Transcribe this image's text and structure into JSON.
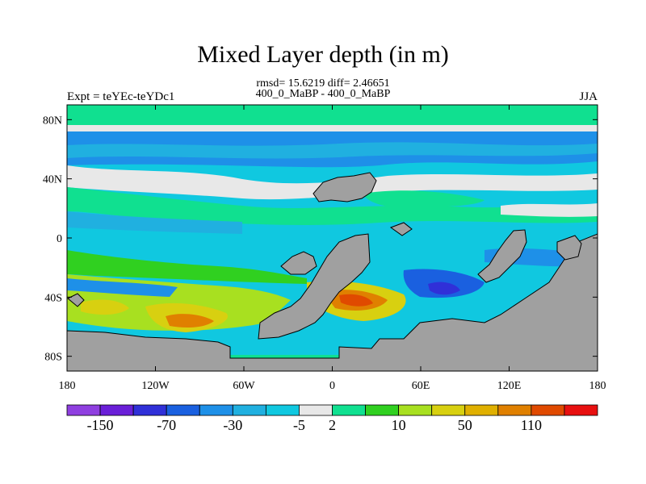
{
  "title": "Mixed Layer depth (in m)",
  "stats": "rmsd= 15.6219 diff= 2.46651",
  "subtitle": "400_0_MaBP - 400_0_MaBP",
  "experiment_label": "Expt = teYEc-teYDc1",
  "season": "JJA",
  "colors": {
    "land": "#a0a0a0",
    "neutral": "#e8e8e8"
  },
  "chart_data": {
    "type": "heatmap",
    "title": "Mixed Layer depth (in m)",
    "subtitle": "400_0_MaBP - 400_0_MaBP",
    "xlabel": "",
    "ylabel": "",
    "xlim": [
      -180,
      180
    ],
    "ylim": [
      -90,
      90
    ],
    "x_ticks": [
      {
        "value": -180,
        "label": "180"
      },
      {
        "value": -120,
        "label": "120W"
      },
      {
        "value": -60,
        "label": "60W"
      },
      {
        "value": 0,
        "label": "0"
      },
      {
        "value": 60,
        "label": "60E"
      },
      {
        "value": 120,
        "label": "120E"
      },
      {
        "value": 180,
        "label": "180"
      }
    ],
    "y_ticks": [
      {
        "value": 80,
        "label": "80N"
      },
      {
        "value": 40,
        "label": "40N"
      },
      {
        "value": 0,
        "label": "0"
      },
      {
        "value": -40,
        "label": "40S"
      },
      {
        "value": -80,
        "label": "80S"
      }
    ],
    "colorbar": {
      "colors": [
        "#8f3fe0",
        "#6a1fd8",
        "#3030d8",
        "#1a60e0",
        "#1e90e8",
        "#20b0e0",
        "#10c8e0",
        "#e8e8e8",
        "#10e090",
        "#30d020",
        "#a8e020",
        "#d8d010",
        "#e0b000",
        "#e08000",
        "#e04a00",
        "#e81010"
      ],
      "tick_labels": [
        "-150",
        "-70",
        "-30",
        "-5",
        "2",
        "10",
        "50",
        "110"
      ],
      "tick_boundary_index": [
        1,
        3,
        5,
        7,
        8,
        10,
        12,
        14
      ]
    },
    "grid": false,
    "legend": "bottom-colorbar"
  }
}
